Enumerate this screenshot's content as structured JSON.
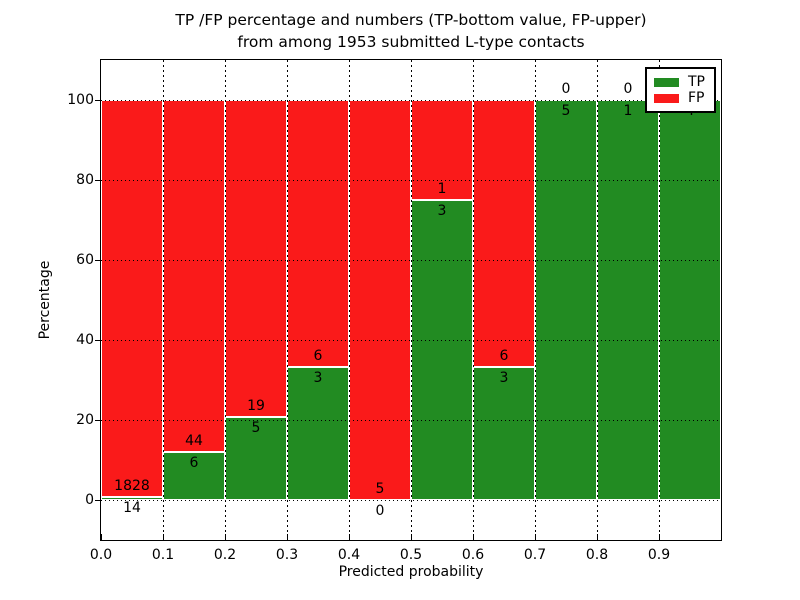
{
  "title": {
    "line1": "TP /FP percentage and numbers (TP-bottom value, FP-upper)",
    "line2": "from among 1953 submitted L-type contacts"
  },
  "chart_data": {
    "type": "bar",
    "mode": "stacked-percentage",
    "title": "TP /FP percentage and numbers (TP-bottom value, FP-upper) from among 1953 submitted L-type contacts",
    "total_contacts": 1953,
    "categories": [
      "0.0-0.1",
      "0.1-0.2",
      "0.2-0.3",
      "0.3-0.4",
      "0.4-0.5",
      "0.5-0.6",
      "0.6-0.7",
      "0.7-0.8",
      "0.8-0.9",
      "0.9-1.0"
    ],
    "series": [
      {
        "name": "TP",
        "color": "#228b22",
        "values": [
          14,
          6,
          5,
          3,
          0,
          3,
          3,
          5,
          1,
          4
        ]
      },
      {
        "name": "FP",
        "color": "#fa1a1a",
        "values": [
          1828,
          44,
          19,
          6,
          5,
          1,
          6,
          0,
          0,
          0
        ]
      }
    ],
    "tp_percent": [
      0.76,
      12.0,
      20.83,
      33.33,
      0.0,
      75.0,
      33.33,
      100.0,
      100.0,
      100.0
    ],
    "xlabel": "Predicted probability",
    "ylabel": "Percentage",
    "xlim": [
      0.0,
      1.0
    ],
    "ylim": [
      -10,
      110
    ],
    "xticks": [
      "0.0",
      "0.1",
      "0.2",
      "0.3",
      "0.4",
      "0.5",
      "0.6",
      "0.7",
      "0.8",
      "0.9"
    ],
    "yticks": [
      "0",
      "20",
      "40",
      "60",
      "80",
      "100"
    ],
    "grid": "dotted",
    "legend": {
      "position": "upper right",
      "entries": [
        {
          "label": "TP",
          "color": "#228b22"
        },
        {
          "label": "FP",
          "color": "#fa1a1a"
        }
      ]
    }
  }
}
